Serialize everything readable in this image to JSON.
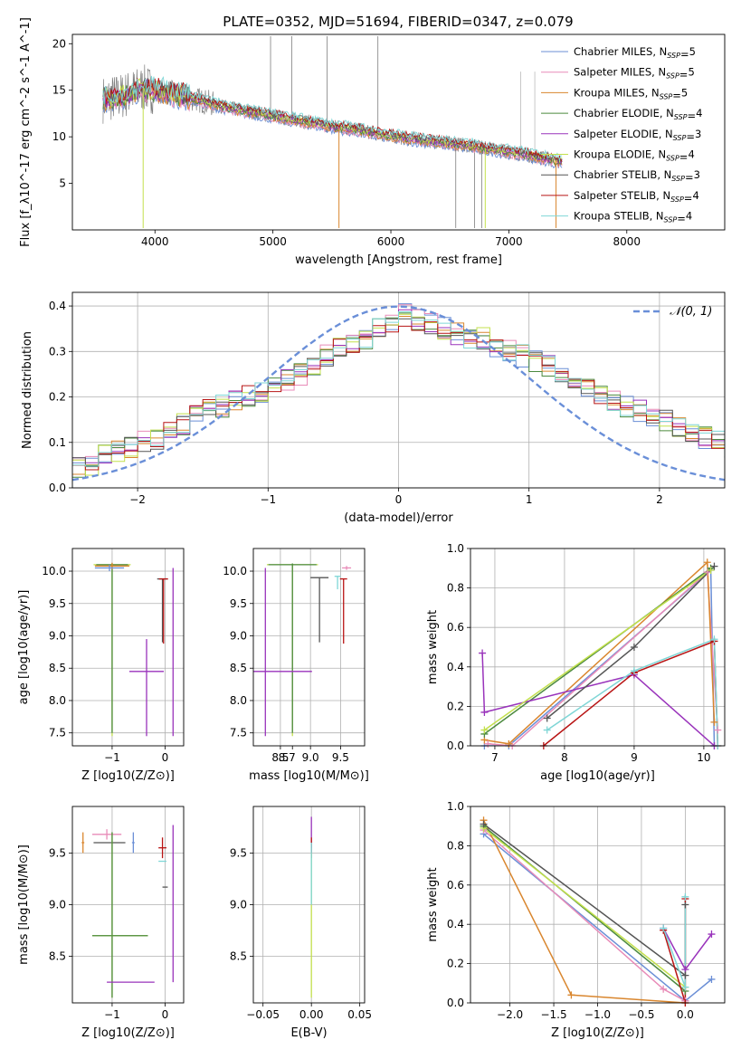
{
  "figure": {
    "title": "PLATE=0352, MJD=51694, FIBERID=0347, z=0.079"
  },
  "colors": {
    "Chabrier MILES": "#6b8fd6",
    "Salpeter MILES": "#e88bb8",
    "Kroupa MILES": "#d9862e",
    "Chabrier ELODIE": "#4c8a3f",
    "Salpeter ELODIE": "#9933bb",
    "Kroupa ELODIE": "#c3e04d",
    "Chabrier STELIB": "#555555",
    "Salpeter STELIB": "#b81414",
    "Kroupa STELIB": "#7fd6d6",
    "data": "#7f7f7f",
    "normal": "#6a8fd8",
    "grid": "#b0b0b0"
  },
  "chart_data": [
    {
      "id": "spectrum",
      "type": "line",
      "xlabel": "wavelength [Angstrom, rest frame]",
      "ylabel": "Flux [f_λ10^-17 erg cm^-2 s^-1 A^-1]",
      "xlim": [
        3300,
        8830
      ],
      "ylim": [
        0,
        21
      ],
      "xticks": [
        4000,
        5000,
        6000,
        7000,
        8000
      ],
      "yticks": [
        5,
        10,
        15,
        20
      ],
      "grid": false,
      "legend_position": "top-right",
      "legend": [
        {
          "name": "Chabrier MILES",
          "nssp": "5"
        },
        {
          "name": "Salpeter MILES",
          "nssp": "5"
        },
        {
          "name": "Kroupa MILES",
          "nssp": "5"
        },
        {
          "name": "Chabrier ELODIE",
          "nssp": "4"
        },
        {
          "name": "Salpeter ELODIE",
          "nssp": "3"
        },
        {
          "name": "Kroupa ELODIE",
          "nssp": "4"
        },
        {
          "name": "Chabrier STELIB",
          "nssp": "3"
        },
        {
          "name": "Salpeter STELIB",
          "nssp": "4"
        },
        {
          "name": "Kroupa STELIB",
          "nssp": "4"
        }
      ],
      "continuum": {
        "x": [
          3560,
          3700,
          3900,
          4100,
          4300,
          4500,
          4700,
          4900,
          5100,
          5300,
          5500,
          5700,
          5900,
          6100,
          6300,
          6500,
          6700,
          6900,
          7100,
          7300,
          7450
        ],
        "y": [
          14.0,
          14.3,
          15.2,
          14.8,
          14.2,
          13.5,
          12.9,
          12.5,
          12.0,
          11.6,
          11.1,
          10.8,
          10.3,
          9.9,
          9.6,
          9.3,
          9.0,
          8.6,
          8.2,
          7.7,
          7.3
        ]
      },
      "data_extent_x": [
        3560,
        7380
      ],
      "model_extent_x": [
        3560,
        7450
      ]
    },
    {
      "id": "residuals",
      "type": "line",
      "xlabel": "(data-model)/error",
      "ylabel": "Normed distribution",
      "xlim": [
        -2.5,
        2.5
      ],
      "ylim": [
        0,
        0.43
      ],
      "xticks": [
        -2,
        -1,
        0,
        1,
        2
      ],
      "yticks": [
        0.0,
        0.1,
        0.2,
        0.3,
        0.4
      ],
      "grid": true,
      "legend_position": "top-right",
      "legend": [
        {
          "name": "𝒩(0, 1)",
          "style": "dashed"
        }
      ],
      "normal_curve": {
        "mean": 0,
        "sigma": 1
      },
      "hist_bin_width": 0.1,
      "hist_envelope": [
        0.048,
        0.05,
        0.07,
        0.08,
        0.09,
        0.1,
        0.11,
        0.13,
        0.14,
        0.16,
        0.17,
        0.18,
        0.19,
        0.2,
        0.21,
        0.22,
        0.24,
        0.25,
        0.27,
        0.29,
        0.31,
        0.32,
        0.33,
        0.35,
        0.36,
        0.38,
        0.37,
        0.36,
        0.35,
        0.34,
        0.33,
        0.33,
        0.31,
        0.3,
        0.29,
        0.28,
        0.27,
        0.25,
        0.24,
        0.22,
        0.21,
        0.19,
        0.18,
        0.17,
        0.16,
        0.15,
        0.13,
        0.12,
        0.11,
        0.1,
        0.09
      ]
    },
    {
      "id": "age-vs-Z",
      "type": "scatter",
      "xlabel": "Z [log10(Z/Z⊙)]",
      "ylabel": "age [log10(age/yr)]",
      "xlim": [
        -1.75,
        0.35
      ],
      "ylim": [
        7.3,
        10.35
      ],
      "xticks": [
        -1,
        0
      ],
      "yticks": [
        7.5,
        8.0,
        8.5,
        9.0,
        9.5,
        10.0
      ],
      "grid": true,
      "points": [
        {
          "series": "Kroupa ELODIE",
          "x": -1.0,
          "y": 10.1,
          "ex": 0.7,
          "ey_lo": 2.65,
          "ey_hi": 0.02
        },
        {
          "series": "Chabrier ELODIE",
          "x": -1.0,
          "y": 10.1,
          "ex": 0.6,
          "ey_lo": 2.6,
          "ey_hi": 0.02
        },
        {
          "series": "Kroupa MILES",
          "x": -1.0,
          "y": 10.08,
          "ex": 0.65,
          "ey_lo": 0.05,
          "ey_hi": 0.05
        },
        {
          "series": "Chabrier MILES",
          "x": -1.05,
          "y": 10.05,
          "ex": 0.55,
          "ey_lo": 0.05,
          "ey_hi": 0.05
        },
        {
          "series": "Salpeter ELODIE",
          "x": -0.35,
          "y": 8.45,
          "ex": 0.65,
          "ey_lo": 1.0,
          "ey_hi": 0.5
        },
        {
          "series": "Salpeter ELODIE",
          "x": 0.15,
          "y": 8.45,
          "ex": 0.0,
          "ey_lo": 1.0,
          "ey_hi": 1.6
        },
        {
          "series": "Chabrier STELIB",
          "x": -0.05,
          "y": 9.88,
          "ex": 0.2,
          "ey_lo": 0.98,
          "ey_hi": 0.0
        },
        {
          "series": "Salpeter STELIB",
          "x": -0.03,
          "y": 9.88,
          "ex": 0.17,
          "ey_lo": 1.0,
          "ey_hi": 0.0
        }
      ]
    },
    {
      "id": "age-vs-mass",
      "type": "scatter",
      "xlabel": "mass [log10(M/M⊙)]",
      "ylabel": "",
      "xlim": [
        8.05,
        9.9
      ],
      "ylim": [
        7.3,
        10.35
      ],
      "xticks": [
        8.5,
        9.0,
        9.5
      ],
      "xticklabels": [
        "8.5",
        "9.0",
        "9.5"
      ],
      "extra_xtick": {
        "value": 8.7,
        "label": "8.7"
      },
      "yticks": [
        7.5,
        8.0,
        8.5,
        9.0,
        9.5,
        10.0
      ],
      "grid": true,
      "points": [
        {
          "series": "Kroupa ELODIE",
          "x": 8.7,
          "y": 10.1,
          "ex": 0.85,
          "ey_lo": 2.65,
          "ey_hi": 0.02
        },
        {
          "series": "Chabrier ELODIE",
          "x": 8.7,
          "y": 10.1,
          "ex": 0.8,
          "ey_lo": 2.6,
          "ey_hi": 0.02
        },
        {
          "series": "Salpeter ELODIE",
          "x": 8.25,
          "y": 8.45,
          "ex": 0.0,
          "ey_lo": 1.0,
          "ey_hi": 1.6
        },
        {
          "series": "Salpeter ELODIE",
          "x": 8.25,
          "y": 8.45,
          "ex": 1.55,
          "ey_lo": 0.0,
          "ey_hi": 0.0
        },
        {
          "series": "Chabrier STELIB",
          "x": 9.15,
          "y": 9.9,
          "ex": 0.3,
          "ey_lo": 1.0,
          "ey_hi": 0.0
        },
        {
          "series": "Salpeter STELIB",
          "x": 9.55,
          "y": 9.88,
          "ex": 0.12,
          "ey_lo": 1.0,
          "ey_hi": 0.0
        },
        {
          "series": "Kroupa STELIB",
          "x": 9.45,
          "y": 9.92,
          "ex": 0.1,
          "ey_lo": 0.2,
          "ey_hi": 0.0
        },
        {
          "series": "Salpeter MILES",
          "x": 9.6,
          "y": 10.05,
          "ex": 0.15,
          "ey_lo": 0.03,
          "ey_hi": 0.03
        }
      ]
    },
    {
      "id": "mass-weight-vs-age",
      "type": "line",
      "xlabel": "age [log10(age/yr)]",
      "ylabel": "mass weight",
      "xlim": [
        6.65,
        10.3
      ],
      "ylim": [
        0,
        1
      ],
      "xticks": [
        7,
        8,
        9,
        10
      ],
      "yticks": [
        0.0,
        0.2,
        0.4,
        0.6,
        0.8,
        1.0
      ],
      "grid": true,
      "series": [
        {
          "name": "Chabrier MILES",
          "x": [
            6.85,
            7.2,
            10.1,
            10.15
          ],
          "y": [
            0.0,
            0.0,
            0.89,
            0.0
          ]
        },
        {
          "name": "Salpeter MILES",
          "x": [
            6.9,
            7.25,
            10.05,
            10.2
          ],
          "y": [
            0.01,
            0.0,
            0.88,
            0.08
          ]
        },
        {
          "name": "Kroupa MILES",
          "x": [
            6.85,
            7.2,
            10.05,
            10.15
          ],
          "y": [
            0.03,
            0.01,
            0.93,
            0.12
          ]
        },
        {
          "name": "Chabrier ELODIE",
          "x": [
            6.85,
            10.1
          ],
          "y": [
            0.06,
            0.9
          ]
        },
        {
          "name": "Salpeter ELODIE",
          "x": [
            6.82,
            6.85,
            9.0,
            10.15
          ],
          "y": [
            0.47,
            0.17,
            0.36,
            0.0
          ]
        },
        {
          "name": "Kroupa ELODIE",
          "x": [
            6.85,
            10.1
          ],
          "y": [
            0.08,
            0.89
          ]
        },
        {
          "name": "Chabrier STELIB",
          "x": [
            7.75,
            9.0,
            10.15
          ],
          "y": [
            0.14,
            0.5,
            0.91
          ]
        },
        {
          "name": "Salpeter STELIB",
          "x": [
            7.7,
            9.0,
            10.15,
            10.2
          ],
          "y": [
            0.0,
            0.37,
            0.53,
            0.0
          ]
        },
        {
          "name": "Kroupa STELIB",
          "x": [
            7.75,
            9.0,
            10.15,
            10.2
          ],
          "y": [
            0.08,
            0.38,
            0.54,
            0.0
          ]
        }
      ]
    },
    {
      "id": "mass-vs-Z",
      "type": "scatter",
      "xlabel": "Z [log10(Z/Z⊙)]",
      "ylabel": "mass [log10(M/M⊙)]",
      "xlim": [
        -1.75,
        0.35
      ],
      "ylim": [
        8.05,
        9.95
      ],
      "xticks": [
        -1,
        0
      ],
      "yticks": [
        8.5,
        9.0,
        9.5
      ],
      "grid": true,
      "points": [
        {
          "series": "Salpeter MILES",
          "x": -1.1,
          "y": 9.68,
          "ex": 0.55,
          "ey_lo": 0.05,
          "ey_hi": 0.05
        },
        {
          "series": "Kroupa MILES",
          "x": -1.55,
          "y": 9.6,
          "ex": 0.05,
          "ey_lo": 0.1,
          "ey_hi": 0.1
        },
        {
          "series": "Chabrier MILES",
          "x": -0.6,
          "y": 9.6,
          "ex": 0.05,
          "ey_lo": 0.1,
          "ey_hi": 0.1
        },
        {
          "series": "Chabrier STELIB",
          "x": -1.05,
          "y": 9.6,
          "ex": 0.6,
          "ey_lo": 0.0,
          "ey_hi": 0.0
        },
        {
          "series": "Salpeter STELIB",
          "x": -0.05,
          "y": 9.55,
          "ex": 0.15,
          "ey_lo": 0.1,
          "ey_hi": 0.1
        },
        {
          "series": "Kroupa STELIB",
          "x": -0.05,
          "y": 9.42,
          "ex": 0.15,
          "ey_lo": 0.0,
          "ey_hi": 0.0
        },
        {
          "series": "Chabrier STELIB",
          "x": 0.0,
          "y": 9.17,
          "ex": 0.1,
          "ey_lo": 0.0,
          "ey_hi": 0.0
        },
        {
          "series": "Salpeter ELODIE",
          "x": 0.15,
          "y": 9.75,
          "ex": 0.0,
          "ey_lo": 1.5,
          "ey_hi": 0.02
        },
        {
          "series": "Kroupa ELODIE",
          "x": -0.85,
          "y": 8.7,
          "ex": 1.05,
          "ey_lo": 0.0,
          "ey_hi": 0.0
        },
        {
          "series": "Chabrier ELODIE",
          "x": -0.85,
          "y": 8.7,
          "ex": 1.05,
          "ey_lo": 0.0,
          "ey_hi": 0.0
        },
        {
          "series": "Kroupa ELODIE",
          "x": -1.0,
          "y": 8.7,
          "ex": 0.0,
          "ey_lo": 0.6,
          "ey_hi": 1.0
        },
        {
          "series": "Chabrier ELODIE",
          "x": -1.0,
          "y": 8.7,
          "ex": 0.0,
          "ey_lo": 0.6,
          "ey_hi": 1.0
        },
        {
          "series": "Salpeter ELODIE",
          "x": -0.65,
          "y": 8.25,
          "ex": 0.9,
          "ey_lo": 0.0,
          "ey_hi": 0.0
        }
      ]
    },
    {
      "id": "mass-vs-ebv",
      "type": "scatter",
      "xlabel": "E(B-V)",
      "ylabel": "",
      "xlim": [
        -0.06,
        0.055
      ],
      "ylim": [
        8.05,
        9.95
      ],
      "xticks": [
        -0.05,
        0.0,
        0.05
      ],
      "xticklabels": [
        "−0.05",
        "0.00",
        "0.05"
      ],
      "yticks": [
        8.5,
        9.0,
        9.5
      ],
      "grid": true,
      "points": [
        {
          "series": "Salpeter ELODIE",
          "x": 0.0,
          "y": 9.6,
          "ey_lo": 0.05,
          "ey_hi": 0.25
        },
        {
          "series": "Salpeter STELIB",
          "x": 0.0,
          "y": 9.55,
          "ey_lo": 0.1,
          "ey_hi": 0.1
        },
        {
          "series": "Kroupa ELODIE",
          "x": 0.0,
          "y": 9.0,
          "ey_lo": 0.9,
          "ey_hi": 0.5
        },
        {
          "series": "Kroupa STELIB",
          "x": 0.0,
          "y": 9.3,
          "ey_lo": 0.3,
          "ey_hi": 0.3
        }
      ]
    },
    {
      "id": "mass-weight-vs-Z",
      "type": "line",
      "xlabel": "Z [log10(Z/Z⊙)]",
      "ylabel": "mass weight",
      "xlim": [
        -2.45,
        0.45
      ],
      "ylim": [
        0,
        1
      ],
      "xticks": [
        -2.0,
        -1.5,
        -1.0,
        -0.5,
        0.0
      ],
      "xticklabels": [
        "−2.0",
        "−1.5",
        "−1.0",
        "−0.5",
        "0.0"
      ],
      "yticks": [
        0.0,
        0.2,
        0.4,
        0.6,
        0.8,
        1.0
      ],
      "grid": true,
      "series": [
        {
          "name": "Chabrier MILES",
          "x": [
            -2.3,
            0.0,
            0.3
          ],
          "y": [
            0.86,
            0.01,
            0.12
          ]
        },
        {
          "name": "Salpeter MILES",
          "x": [
            -2.3,
            -0.25,
            0.0
          ],
          "y": [
            0.88,
            0.07,
            0.01
          ]
        },
        {
          "name": "Kroupa MILES",
          "x": [
            -2.3,
            -1.3,
            0.0
          ],
          "y": [
            0.93,
            0.04,
            0.0
          ]
        },
        {
          "name": "Chabrier ELODIE",
          "x": [
            -2.3,
            0.0
          ],
          "y": [
            0.9,
            0.06
          ]
        },
        {
          "name": "Salpeter ELODIE",
          "x": [
            -0.25,
            0.0,
            0.3
          ],
          "y": [
            0.38,
            0.17,
            0.35
          ]
        },
        {
          "name": "Kroupa ELODIE",
          "x": [
            -2.3,
            0.0
          ],
          "y": [
            0.89,
            0.08
          ]
        },
        {
          "name": "Chabrier STELIB",
          "x": [
            -2.3,
            0.0,
            0.0
          ],
          "y": [
            0.91,
            0.14,
            0.5
          ]
        },
        {
          "name": "Salpeter STELIB",
          "x": [
            -0.25,
            0.0,
            0.0
          ],
          "y": [
            0.37,
            0.0,
            0.53
          ]
        },
        {
          "name": "Kroupa STELIB",
          "x": [
            -0.25,
            0.0,
            0.0
          ],
          "y": [
            0.38,
            0.08,
            0.54
          ]
        }
      ]
    }
  ]
}
